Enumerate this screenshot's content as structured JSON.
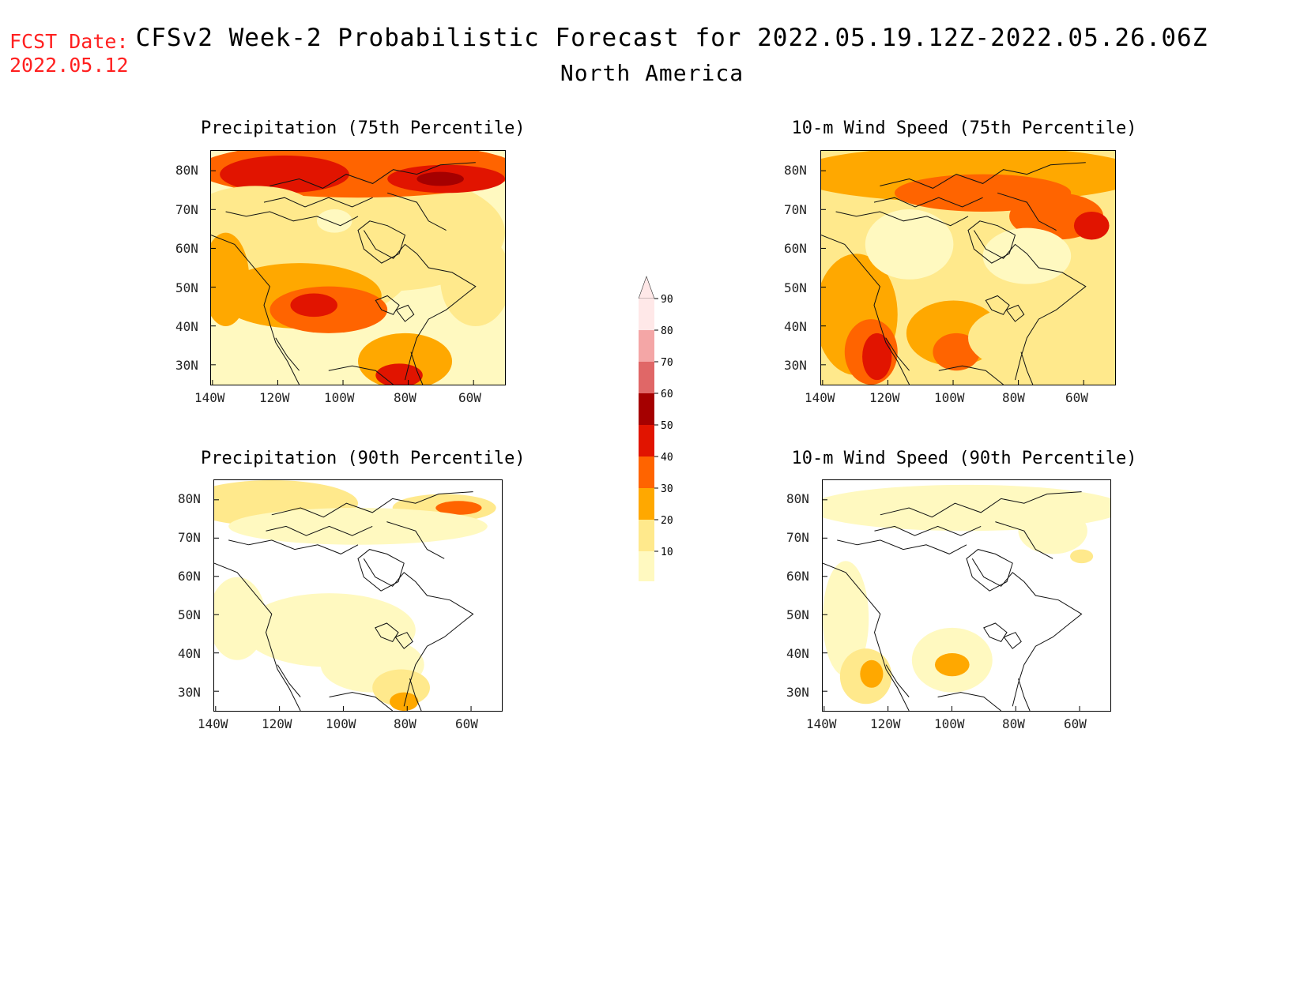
{
  "header": {
    "fcst_label": "FCST Date:",
    "fcst_date": "2022.05.12",
    "title": "CFSv2 Week-2 Probabilistic Forecast for 2022.05.19.12Z-2022.05.26.06Z",
    "subtitle": "North America"
  },
  "axes": {
    "lat_labels": [
      "80N",
      "70N",
      "60N",
      "50N",
      "40N",
      "30N"
    ],
    "lon_labels": [
      "140W",
      "120W",
      "100W",
      "80W",
      "60W"
    ]
  },
  "panels": [
    {
      "id": "precip75",
      "title": "Precipitation (75th Percentile)"
    },
    {
      "id": "wind75",
      "title": "10-m Wind Speed (75th Percentile)"
    },
    {
      "id": "precip90",
      "title": "Precipitation (90th Percentile)"
    },
    {
      "id": "wind90",
      "title": "10-m Wind Speed (90th Percentile)"
    }
  ],
  "colorbar": {
    "levels": [
      "90",
      "80",
      "70",
      "60",
      "50",
      "40",
      "30",
      "20",
      "10"
    ],
    "colors": {
      "10": "#fff9c0",
      "20": "#ffe98c",
      "30": "#ffa800",
      "40": "#ff6400",
      "50": "#e11400",
      "60": "#a50000",
      "70": "#e06767",
      "80": "#f4a6a6",
      "90": "#ffe8e8"
    }
  }
}
